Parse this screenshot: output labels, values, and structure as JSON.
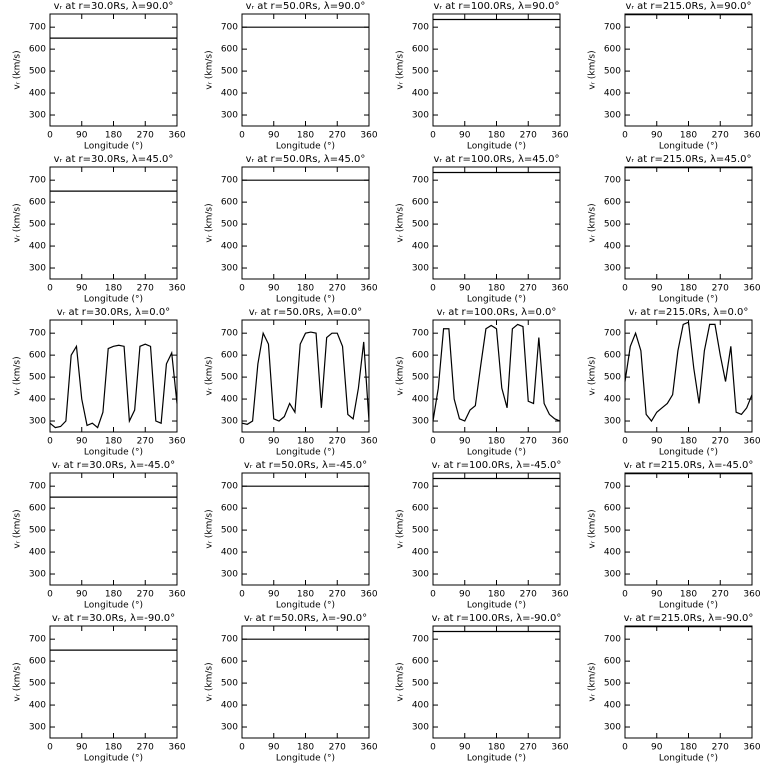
{
  "chart_data": [
    {
      "type": "line",
      "title": "vᵣ at r=30.0Rs, λ=90.0°",
      "xlabel": "Longitude (°)",
      "ylabel": "vᵣ (km/s)",
      "xlim": [
        0,
        360
      ],
      "ylim": [
        250,
        760
      ],
      "xticks": [
        0,
        90,
        180,
        270,
        360
      ],
      "yticks": [
        300,
        400,
        500,
        600,
        700
      ],
      "x": [
        0,
        360
      ],
      "values": [
        650,
        650
      ],
      "color": "#000000"
    },
    {
      "type": "line",
      "title": "vᵣ at r=50.0Rs, λ=90.0°",
      "xlabel": "Longitude (°)",
      "ylabel": "vᵣ (km/s)",
      "xlim": [
        0,
        360
      ],
      "ylim": [
        250,
        760
      ],
      "xticks": [
        0,
        90,
        180,
        270,
        360
      ],
      "yticks": [
        300,
        400,
        500,
        600,
        700
      ],
      "x": [
        0,
        360
      ],
      "values": [
        700,
        700
      ],
      "color": "#000000"
    },
    {
      "type": "line",
      "title": "vᵣ at r=100.0Rs, λ=90.0°",
      "xlabel": "Longitude (°)",
      "ylabel": "vᵣ (km/s)",
      "xlim": [
        0,
        360
      ],
      "ylim": [
        250,
        760
      ],
      "xticks": [
        0,
        90,
        180,
        270,
        360
      ],
      "yticks": [
        300,
        400,
        500,
        600,
        700
      ],
      "x": [
        0,
        360
      ],
      "values": [
        735,
        735
      ],
      "color": "#000000"
    },
    {
      "type": "line",
      "title": "vᵣ at r=215.0Rs, λ=90.0°",
      "xlabel": "Longitude (°)",
      "ylabel": "vᵣ (km/s)",
      "xlim": [
        0,
        360
      ],
      "ylim": [
        250,
        760
      ],
      "xticks": [
        0,
        90,
        180,
        270,
        360
      ],
      "yticks": [
        300,
        400,
        500,
        600,
        700
      ],
      "x": [
        0,
        360
      ],
      "values": [
        757,
        757
      ],
      "color": "#000000"
    },
    {
      "type": "line",
      "title": "vᵣ at r=30.0Rs, λ=45.0°",
      "xlabel": "Longitude (°)",
      "ylabel": "vᵣ (km/s)",
      "xlim": [
        0,
        360
      ],
      "ylim": [
        250,
        760
      ],
      "xticks": [
        0,
        90,
        180,
        270,
        360
      ],
      "yticks": [
        300,
        400,
        500,
        600,
        700
      ],
      "x": [
        0,
        360
      ],
      "values": [
        650,
        650
      ],
      "color": "#000000"
    },
    {
      "type": "line",
      "title": "vᵣ at r=50.0Rs, λ=45.0°",
      "xlabel": "Longitude (°)",
      "ylabel": "vᵣ (km/s)",
      "xlim": [
        0,
        360
      ],
      "ylim": [
        250,
        760
      ],
      "xticks": [
        0,
        90,
        180,
        270,
        360
      ],
      "yticks": [
        300,
        400,
        500,
        600,
        700
      ],
      "x": [
        0,
        360
      ],
      "values": [
        700,
        700
      ],
      "color": "#000000"
    },
    {
      "type": "line",
      "title": "vᵣ at r=100.0Rs, λ=45.0°",
      "xlabel": "Longitude (°)",
      "ylabel": "vᵣ (km/s)",
      "xlim": [
        0,
        360
      ],
      "ylim": [
        250,
        760
      ],
      "xticks": [
        0,
        90,
        180,
        270,
        360
      ],
      "yticks": [
        300,
        400,
        500,
        600,
        700
      ],
      "x": [
        0,
        360
      ],
      "values": [
        735,
        735
      ],
      "color": "#000000"
    },
    {
      "type": "line",
      "title": "vᵣ at r=215.0Rs, λ=45.0°",
      "xlabel": "Longitude (°)",
      "ylabel": "vᵣ (km/s)",
      "xlim": [
        0,
        360
      ],
      "ylim": [
        250,
        760
      ],
      "xticks": [
        0,
        90,
        180,
        270,
        360
      ],
      "yticks": [
        300,
        400,
        500,
        600,
        700
      ],
      "x": [
        0,
        360
      ],
      "values": [
        757,
        757
      ],
      "color": "#000000"
    },
    {
      "type": "line",
      "title": "vᵣ at r=30.0Rs, λ=0.0°",
      "xlabel": "Longitude (°)",
      "ylabel": "vᵣ (km/s)",
      "xlim": [
        0,
        360
      ],
      "ylim": [
        250,
        760
      ],
      "xticks": [
        0,
        90,
        180,
        270,
        360
      ],
      "yticks": [
        300,
        400,
        500,
        600,
        700
      ],
      "x": [
        0,
        15,
        30,
        45,
        60,
        75,
        90,
        105,
        120,
        135,
        150,
        165,
        180,
        195,
        210,
        225,
        240,
        255,
        270,
        285,
        300,
        315,
        330,
        345,
        360
      ],
      "values": [
        290,
        270,
        275,
        300,
        600,
        640,
        400,
        280,
        290,
        270,
        340,
        630,
        640,
        645,
        640,
        300,
        350,
        640,
        650,
        640,
        300,
        290,
        560,
        610,
        380
      ],
      "color": "#000000"
    },
    {
      "type": "line",
      "title": "vᵣ at r=50.0Rs, λ=0.0°",
      "xlabel": "Longitude (°)",
      "ylabel": "vᵣ (km/s)",
      "xlim": [
        0,
        360
      ],
      "ylim": [
        250,
        760
      ],
      "xticks": [
        0,
        90,
        180,
        270,
        360
      ],
      "yticks": [
        300,
        400,
        500,
        600,
        700
      ],
      "x": [
        0,
        15,
        30,
        45,
        60,
        75,
        90,
        105,
        120,
        135,
        150,
        165,
        180,
        195,
        210,
        225,
        240,
        255,
        270,
        285,
        300,
        315,
        330,
        345,
        360
      ],
      "values": [
        290,
        285,
        300,
        560,
        700,
        650,
        310,
        300,
        320,
        380,
        340,
        650,
        700,
        705,
        700,
        360,
        680,
        700,
        700,
        640,
        330,
        310,
        450,
        660,
        300
      ],
      "color": "#000000"
    },
    {
      "type": "line",
      "title": "vᵣ at r=100.0Rs, λ=0.0°",
      "xlabel": "Longitude (°)",
      "ylabel": "vᵣ (km/s)",
      "xlim": [
        0,
        360
      ],
      "ylim": [
        250,
        760
      ],
      "xticks": [
        0,
        90,
        180,
        270,
        360
      ],
      "yticks": [
        300,
        400,
        500,
        600,
        700
      ],
      "x": [
        0,
        15,
        30,
        45,
        60,
        75,
        90,
        105,
        120,
        135,
        150,
        165,
        180,
        195,
        210,
        225,
        240,
        255,
        270,
        285,
        300,
        315,
        330,
        345,
        360
      ],
      "values": [
        300,
        450,
        720,
        720,
        400,
        310,
        300,
        350,
        370,
        550,
        720,
        735,
        720,
        450,
        360,
        720,
        740,
        730,
        390,
        380,
        680,
        380,
        330,
        310,
        300
      ],
      "color": "#000000"
    },
    {
      "type": "line",
      "title": "vᵣ at r=215.0Rs, λ=0.0°",
      "xlabel": "Longitude (°)",
      "ylabel": "vᵣ (km/s)",
      "xlim": [
        0,
        360
      ],
      "ylim": [
        250,
        760
      ],
      "xticks": [
        0,
        90,
        180,
        270,
        360
      ],
      "yticks": [
        300,
        400,
        500,
        600,
        700
      ],
      "x": [
        0,
        15,
        30,
        45,
        60,
        75,
        90,
        105,
        120,
        135,
        150,
        165,
        180,
        195,
        210,
        225,
        240,
        255,
        270,
        285,
        300,
        315,
        330,
        345,
        360
      ],
      "values": [
        480,
        640,
        700,
        620,
        330,
        300,
        340,
        360,
        380,
        420,
        620,
        740,
        750,
        540,
        380,
        620,
        740,
        740,
        600,
        480,
        640,
        340,
        330,
        360,
        420
      ],
      "color": "#000000"
    },
    {
      "type": "line",
      "title": "vᵣ at r=30.0Rs, λ=-45.0°",
      "xlabel": "Longitude (°)",
      "ylabel": "vᵣ (km/s)",
      "xlim": [
        0,
        360
      ],
      "ylim": [
        250,
        760
      ],
      "xticks": [
        0,
        90,
        180,
        270,
        360
      ],
      "yticks": [
        300,
        400,
        500,
        600,
        700
      ],
      "x": [
        0,
        360
      ],
      "values": [
        650,
        650
      ],
      "color": "#000000"
    },
    {
      "type": "line",
      "title": "vᵣ at r=50.0Rs, λ=-45.0°",
      "xlabel": "Longitude (°)",
      "ylabel": "vᵣ (km/s)",
      "xlim": [
        0,
        360
      ],
      "ylim": [
        250,
        760
      ],
      "xticks": [
        0,
        90,
        180,
        270,
        360
      ],
      "yticks": [
        300,
        400,
        500,
        600,
        700
      ],
      "x": [
        0,
        360
      ],
      "values": [
        700,
        700
      ],
      "color": "#000000"
    },
    {
      "type": "line",
      "title": "vᵣ at r=100.0Rs, λ=-45.0°",
      "xlabel": "Longitude (°)",
      "ylabel": "vᵣ (km/s)",
      "xlim": [
        0,
        360
      ],
      "ylim": [
        250,
        760
      ],
      "xticks": [
        0,
        90,
        180,
        270,
        360
      ],
      "yticks": [
        300,
        400,
        500,
        600,
        700
      ],
      "x": [
        0,
        360
      ],
      "values": [
        735,
        735
      ],
      "color": "#000000"
    },
    {
      "type": "line",
      "title": "vᵣ at r=215.0Rs, λ=-45.0°",
      "xlabel": "Longitude (°)",
      "ylabel": "vᵣ (km/s)",
      "xlim": [
        0,
        360
      ],
      "ylim": [
        250,
        760
      ],
      "xticks": [
        0,
        90,
        180,
        270,
        360
      ],
      "yticks": [
        300,
        400,
        500,
        600,
        700
      ],
      "x": [
        0,
        360
      ],
      "values": [
        757,
        757
      ],
      "color": "#000000"
    },
    {
      "type": "line",
      "title": "vᵣ at r=30.0Rs, λ=-90.0°",
      "xlabel": "Longitude (°)",
      "ylabel": "vᵣ (km/s)",
      "xlim": [
        0,
        360
      ],
      "ylim": [
        250,
        760
      ],
      "xticks": [
        0,
        90,
        180,
        270,
        360
      ],
      "yticks": [
        300,
        400,
        500,
        600,
        700
      ],
      "x": [
        0,
        360
      ],
      "values": [
        650,
        650
      ],
      "color": "#000000"
    },
    {
      "type": "line",
      "title": "vᵣ at r=50.0Rs, λ=-90.0°",
      "xlabel": "Longitude (°)",
      "ylabel": "vᵣ (km/s)",
      "xlim": [
        0,
        360
      ],
      "ylim": [
        250,
        760
      ],
      "xticks": [
        0,
        90,
        180,
        270,
        360
      ],
      "yticks": [
        300,
        400,
        500,
        600,
        700
      ],
      "x": [
        0,
        360
      ],
      "values": [
        700,
        700
      ],
      "color": "#000000"
    },
    {
      "type": "line",
      "title": "vᵣ at r=100.0Rs, λ=-90.0°",
      "xlabel": "Longitude (°)",
      "ylabel": "vᵣ (km/s)",
      "xlim": [
        0,
        360
      ],
      "ylim": [
        250,
        760
      ],
      "xticks": [
        0,
        90,
        180,
        270,
        360
      ],
      "yticks": [
        300,
        400,
        500,
        600,
        700
      ],
      "x": [
        0,
        360
      ],
      "values": [
        735,
        735
      ],
      "color": "#000000"
    },
    {
      "type": "line",
      "title": "vᵣ at r=215.0Rs, λ=-90.0°",
      "xlabel": "Longitude (°)",
      "ylabel": "vᵣ (km/s)",
      "xlim": [
        0,
        360
      ],
      "ylim": [
        250,
        760
      ],
      "xticks": [
        0,
        90,
        180,
        270,
        360
      ],
      "yticks": [
        300,
        400,
        500,
        600,
        700
      ],
      "x": [
        0,
        360
      ],
      "values": [
        757,
        757
      ],
      "color": "#000000"
    }
  ]
}
